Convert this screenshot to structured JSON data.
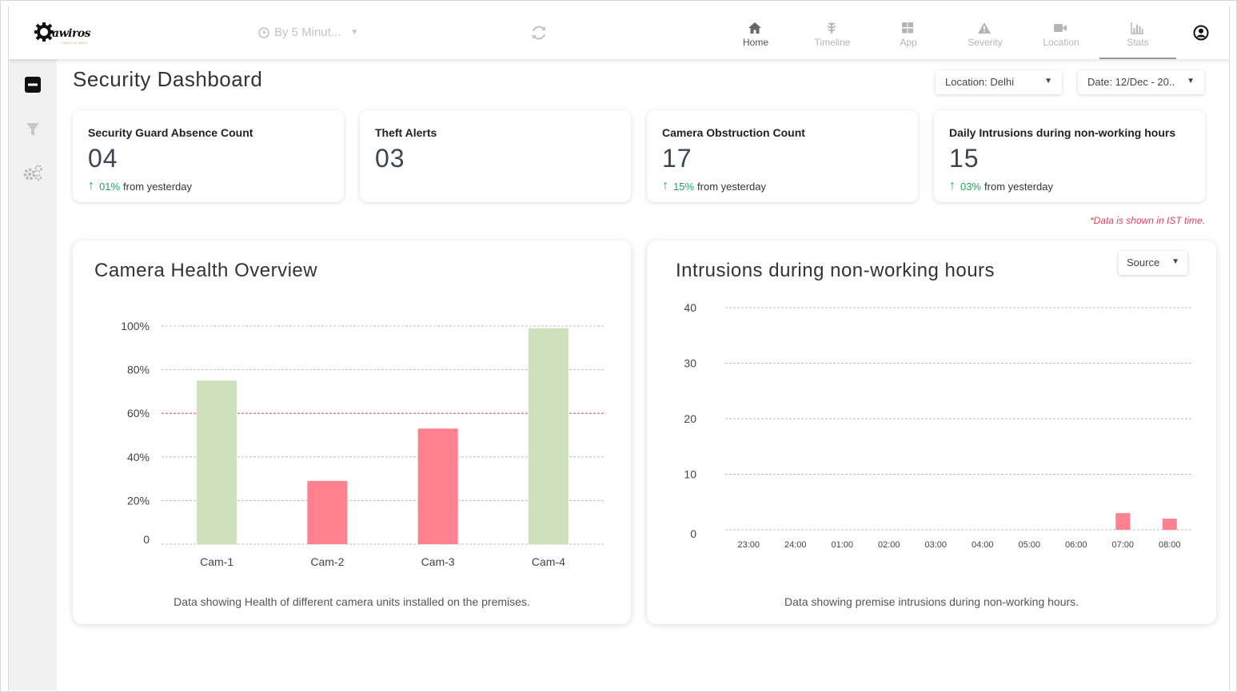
{
  "app": {
    "logo_text": "awiros",
    "logo_subtext": "VIDEO AI APPS",
    "interval_label": "By 5 Minut...",
    "nav": [
      {
        "label": "Home",
        "icon": "home-icon"
      },
      {
        "label": "Timeline",
        "icon": "timeline-icon"
      },
      {
        "label": "App",
        "icon": "grid-icon"
      },
      {
        "label": "Severity",
        "icon": "warning-icon"
      },
      {
        "label": "Location",
        "icon": "camera-icon"
      },
      {
        "label": "Stats",
        "icon": "bar-chart-icon"
      }
    ],
    "active_nav": "Stats"
  },
  "sidebar": {
    "icons": [
      "collapse-icon",
      "filter-icon",
      "settings-icon"
    ]
  },
  "page": {
    "title": "Security Dashboard",
    "location_filter": "Location: Delhi",
    "date_filter": "Date: 12/Dec - 20..",
    "ist_note": "*Data is shown in IST time."
  },
  "cards": [
    {
      "title": "Security Guard Absence Count",
      "value": "04",
      "delta": "01%",
      "delta_text": "from yesterday"
    },
    {
      "title": "Theft Alerts",
      "value": "03",
      "delta": "",
      "delta_text": ""
    },
    {
      "title": "Camera Obstruction Count",
      "value": "17",
      "delta": "15%",
      "delta_text": "from yesterday"
    },
    {
      "title": "Daily Intrusions during non-working hours",
      "value": "15",
      "delta": "03%",
      "delta_text": "from yesterday"
    }
  ],
  "panels": {
    "camera_health": {
      "title": "Camera Health Overview",
      "caption": "Data showing Health of different camera units installed on the premises."
    },
    "intrusions": {
      "title": "Intrusions during non-working hours",
      "source_filter": "Source",
      "caption": "Data showing premise intrusions during non-working hours."
    }
  },
  "colors": {
    "good": "#cfe0bc",
    "bad": "#ff808e",
    "threshold": "#e35a6e",
    "positive": "#1fa863"
  },
  "chart_data": [
    {
      "type": "bar",
      "title": "Camera Health Overview",
      "categories": [
        "Cam-1",
        "Cam-2",
        "Cam-3",
        "Cam-4"
      ],
      "values": [
        75,
        29,
        53,
        99
      ],
      "ylim": [
        0,
        100
      ],
      "yticks": [
        "0",
        "20%",
        "40%",
        "60%",
        "80%",
        "100%"
      ],
      "ytick_values": [
        0,
        20,
        40,
        60,
        80,
        100
      ],
      "threshold": 60,
      "grid": true
    },
    {
      "type": "bar",
      "title": "Intrusions during non-working hours",
      "categories": [
        "23:00",
        "24:00",
        "01:00",
        "02:00",
        "03:00",
        "04:00",
        "05:00",
        "06:00",
        "07:00",
        "08:00"
      ],
      "values": [
        0,
        0,
        0,
        0,
        0,
        0,
        0,
        0,
        3,
        2
      ],
      "ylim": [
        0,
        40
      ],
      "yticks": [
        "0",
        "10",
        "20",
        "30",
        "40"
      ],
      "ytick_values": [
        0,
        10,
        20,
        30,
        40
      ],
      "grid": true
    }
  ]
}
